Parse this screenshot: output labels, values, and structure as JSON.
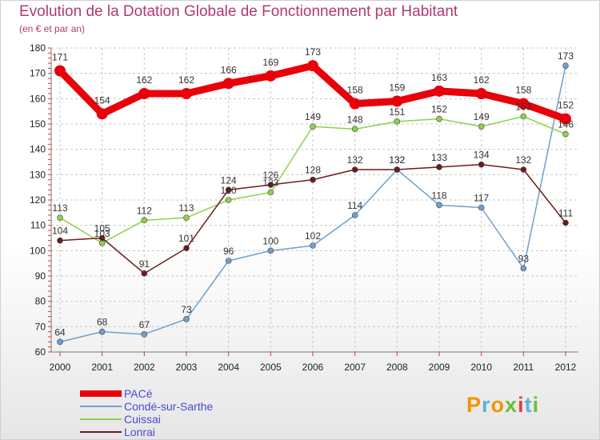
{
  "chart_data": {
    "type": "line",
    "title": "Evolution de la Dotation Globale de Fonctionnement par Habitant",
    "subtitle": "(en € et par an)",
    "categories": [
      "2000",
      "2001",
      "2002",
      "2003",
      "2004",
      "2005",
      "2006",
      "2007",
      "2008",
      "2009",
      "2010",
      "2011",
      "2012"
    ],
    "ylim": [
      60,
      180
    ],
    "yticks": [
      60,
      70,
      80,
      90,
      100,
      110,
      120,
      130,
      140,
      150,
      160,
      170,
      180
    ],
    "grid": true,
    "series": [
      {
        "name": "PACé",
        "color": "#e8000b",
        "values": [
          171,
          154,
          162,
          162,
          166,
          169,
          173,
          158,
          159,
          163,
          162,
          158,
          152
        ]
      },
      {
        "name": "Condé-sur-Sarthe",
        "color": "#6fa0cc",
        "values": [
          64,
          68,
          67,
          73,
          96,
          100,
          102,
          114,
          132,
          118,
          117,
          93,
          173
        ]
      },
      {
        "name": "Cuissai",
        "color": "#8ed14c",
        "values": [
          113,
          103,
          112,
          113,
          120,
          123,
          149,
          148,
          151,
          152,
          149,
          153,
          146
        ]
      },
      {
        "name": "Lonrai",
        "color": "#6a1c1c",
        "values": [
          104,
          105,
          91,
          101,
          124,
          126,
          128,
          132,
          132,
          133,
          134,
          132,
          111
        ]
      }
    ]
  },
  "logo": {
    "text": "Proxiti",
    "letters": [
      "P",
      "r",
      "o",
      "x",
      "i",
      "t",
      "i"
    ]
  }
}
